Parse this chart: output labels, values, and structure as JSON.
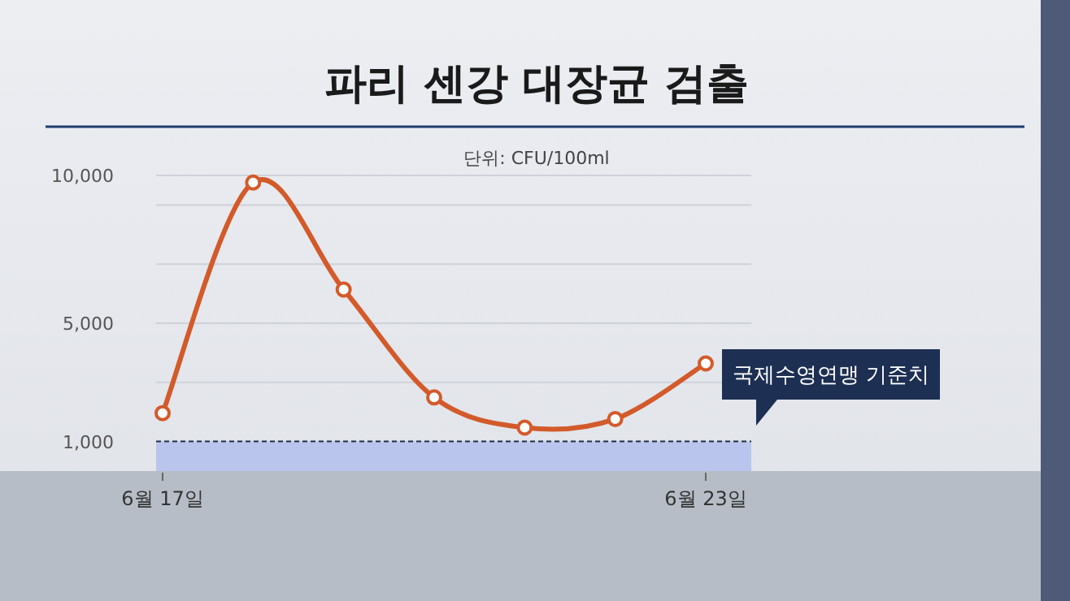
{
  "chart_data": {
    "type": "line",
    "title": "파리 센강 대장균 검출",
    "subtitle": "단위: CFU/100ml",
    "categories": [
      "6월 17일",
      null,
      null,
      null,
      null,
      null,
      "6월 23일"
    ],
    "series": [
      {
        "color": "#d35a2a",
        "values": [
          1960,
          9760,
          6140,
          2490,
          1470,
          1760,
          3640
        ]
      }
    ],
    "ylim": [
      0,
      10000
    ],
    "yticks": [
      {
        "value": 1000,
        "label": "1,000"
      },
      {
        "value": 3000,
        "label": null
      },
      {
        "value": 5000,
        "label": "5,000"
      },
      {
        "value": 7000,
        "label": null
      },
      {
        "value": 9000,
        "label": null
      },
      {
        "value": 10000,
        "label": "10,000"
      }
    ],
    "grid": "y",
    "marker": "circle",
    "line_style": "solid",
    "ref_lines": [
      {
        "axis": "y",
        "value": 1000,
        "label": "국제수영연맹 기준치",
        "color": "#1d2f52",
        "line_style": "dashed"
      }
    ],
    "bands": [
      {
        "axis": "y",
        "from": 0,
        "to": 1000,
        "color": "#b9c5ec"
      }
    ]
  }
}
